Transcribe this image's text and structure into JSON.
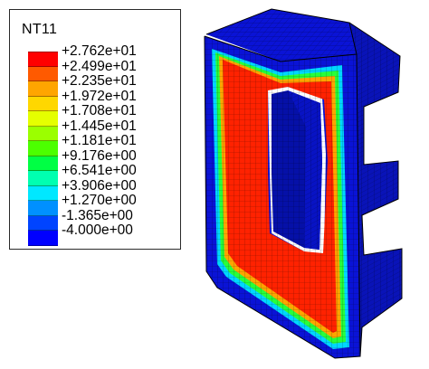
{
  "legend": {
    "title": "NT11",
    "labels": [
      "+2.762e+01",
      "+2.499e+01",
      "+2.235e+01",
      "+1.972e+01",
      "+1.708e+01",
      "+1.445e+01",
      "+1.181e+01",
      "+9.176e+00",
      "+6.541e+00",
      "+3.906e+00",
      "+1.270e+00",
      "-1.365e+00",
      "-4.000e+00"
    ],
    "colors": [
      "#ff0000",
      "#ff5a00",
      "#ffa500",
      "#ffd700",
      "#e5ff00",
      "#9bff00",
      "#4cff00",
      "#00ff44",
      "#00ffb0",
      "#00e8ff",
      "#0090ff",
      "#0044ff",
      "#0000ff"
    ]
  },
  "model": {
    "description_colors": {
      "body": "#0a13d6",
      "body_dark": "#0510a8",
      "hot": "#ff2200",
      "warm": "#ffa500",
      "mid": "#27ff3a",
      "cool": "#00d7ff"
    }
  }
}
